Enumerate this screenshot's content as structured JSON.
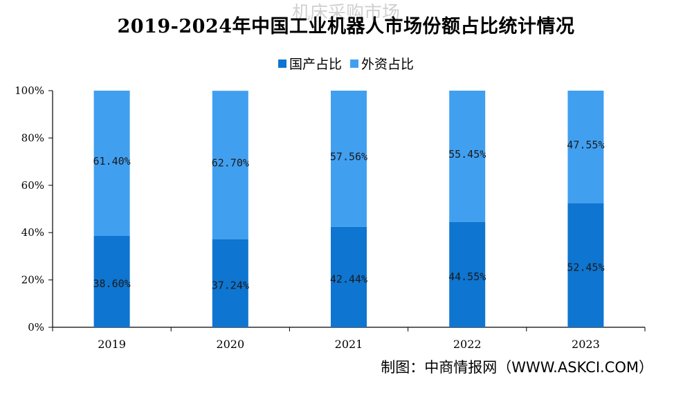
{
  "watermark": "机床采购市场",
  "chart_data": {
    "type": "bar",
    "stacked": true,
    "title": "2019-2024年中国工业机器人市场份额占比统计情况",
    "categories": [
      "2019",
      "2020",
      "2021",
      "2022",
      "2023"
    ],
    "series": [
      {
        "name": "国产占比",
        "values": [
          38.6,
          37.24,
          42.44,
          44.55,
          52.45
        ],
        "labels": [
          "38.60%",
          "37.24%",
          "42.44%",
          "44.55%",
          "52.45%"
        ],
        "color": "#0e75d0"
      },
      {
        "name": "外资占比",
        "values": [
          61.4,
          62.7,
          57.56,
          55.45,
          47.55
        ],
        "labels": [
          "61.40%",
          "62.70%",
          "57.56%",
          "55.45%",
          "47.55%"
        ],
        "color": "#419ff0"
      }
    ],
    "yticks": [
      "0%",
      "20%",
      "40%",
      "60%",
      "80%",
      "100%"
    ],
    "ylim": [
      0,
      100
    ],
    "xlabel": "",
    "ylabel": "",
    "legend_position": "top-center",
    "grid": false
  },
  "source": "制图：中商情报网（WWW.ASKCI.COM）"
}
